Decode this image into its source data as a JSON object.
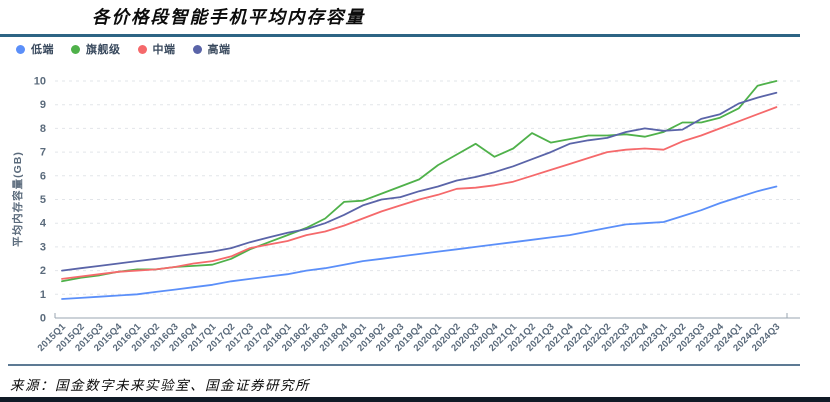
{
  "title": "各价格段智能手机平均内存容量",
  "source": "来源：国金数字未来实验室、国金证券研究所",
  "colors": {
    "title_rule": "#2d6484",
    "source_rule": "#5d7a94",
    "bottom_rule": "#101a26",
    "axis": "#9aa5b1",
    "grid": "#e2e5e9",
    "tick_text": "#5b6b7c"
  },
  "legend": [
    {
      "label": "低端",
      "color": "#5B8FF9"
    },
    {
      "label": "旗舰级",
      "color": "#4FB14A"
    },
    {
      "label": "中端",
      "color": "#F5696B"
    },
    {
      "label": "高端",
      "color": "#5A64A8"
    }
  ],
  "chart_data": {
    "type": "line",
    "title": "各价格段智能手机平均内存容量",
    "xlabel": "",
    "ylabel": "平均内存容量(GB)",
    "ylim": [
      0,
      10
    ],
    "y_ticks": [
      0,
      1,
      2,
      3,
      4,
      5,
      6,
      7,
      8,
      9,
      10
    ],
    "grid": "horizontal-dashed",
    "legend_position": "top-left",
    "categories": [
      "2015Q1",
      "2015Q2",
      "2015Q3",
      "2015Q4",
      "2016Q1",
      "2016Q2",
      "2016Q3",
      "2016Q4",
      "2017Q1",
      "2017Q2",
      "2017Q3",
      "2017Q4",
      "2018Q1",
      "2018Q2",
      "2018Q3",
      "2018Q4",
      "2019Q1",
      "2019Q2",
      "2019Q3",
      "2019Q4",
      "2020Q1",
      "2020Q2",
      "2020Q3",
      "2020Q4",
      "2021Q1",
      "2021Q2",
      "2021Q3",
      "2021Q4",
      "2022Q1",
      "2022Q2",
      "2022Q3",
      "2022Q4",
      "2023Q1",
      "2023Q2",
      "2023Q3",
      "2023Q4",
      "2024Q1",
      "2024Q2",
      "2024Q3"
    ],
    "series": [
      {
        "name": "低端",
        "color": "#5B8FF9",
        "values": [
          0.8,
          0.85,
          0.9,
          0.95,
          1.0,
          1.1,
          1.2,
          1.3,
          1.4,
          1.55,
          1.65,
          1.75,
          1.85,
          2.0,
          2.1,
          2.25,
          2.4,
          2.5,
          2.6,
          2.7,
          2.8,
          2.9,
          3.0,
          3.1,
          3.2,
          3.3,
          3.4,
          3.5,
          3.65,
          3.8,
          3.95,
          4.0,
          4.05,
          4.3,
          4.55,
          4.85,
          5.1,
          5.35,
          5.55
        ]
      },
      {
        "name": "旗舰级",
        "color": "#4FB14A",
        "values": [
          1.55,
          1.7,
          1.8,
          1.95,
          2.05,
          2.05,
          2.15,
          2.2,
          2.25,
          2.5,
          2.9,
          3.2,
          3.5,
          3.8,
          4.2,
          4.9,
          4.95,
          5.25,
          5.55,
          5.85,
          6.45,
          6.9,
          7.35,
          6.8,
          7.15,
          7.8,
          7.4,
          7.55,
          7.7,
          7.7,
          7.75,
          7.65,
          7.85,
          8.25,
          8.25,
          8.45,
          8.85,
          9.8,
          10.0
        ]
      },
      {
        "name": "中端",
        "color": "#F5696B",
        "values": [
          1.65,
          1.75,
          1.85,
          1.95,
          2.0,
          2.05,
          2.15,
          2.3,
          2.4,
          2.6,
          2.95,
          3.1,
          3.25,
          3.5,
          3.65,
          3.9,
          4.2,
          4.5,
          4.75,
          5.0,
          5.2,
          5.45,
          5.5,
          5.6,
          5.75,
          6.0,
          6.25,
          6.5,
          6.75,
          7.0,
          7.1,
          7.15,
          7.1,
          7.45,
          7.7,
          8.0,
          8.3,
          8.6,
          8.9
        ]
      },
      {
        "name": "高端",
        "color": "#5A64A8",
        "values": [
          2.0,
          2.1,
          2.2,
          2.3,
          2.4,
          2.5,
          2.6,
          2.7,
          2.8,
          2.95,
          3.2,
          3.4,
          3.6,
          3.75,
          4.0,
          4.35,
          4.75,
          5.0,
          5.1,
          5.35,
          5.55,
          5.8,
          5.95,
          6.15,
          6.4,
          6.7,
          7.0,
          7.35,
          7.5,
          7.6,
          7.85,
          8.0,
          7.9,
          7.95,
          8.4,
          8.6,
          9.05,
          9.3,
          9.5
        ]
      }
    ]
  }
}
